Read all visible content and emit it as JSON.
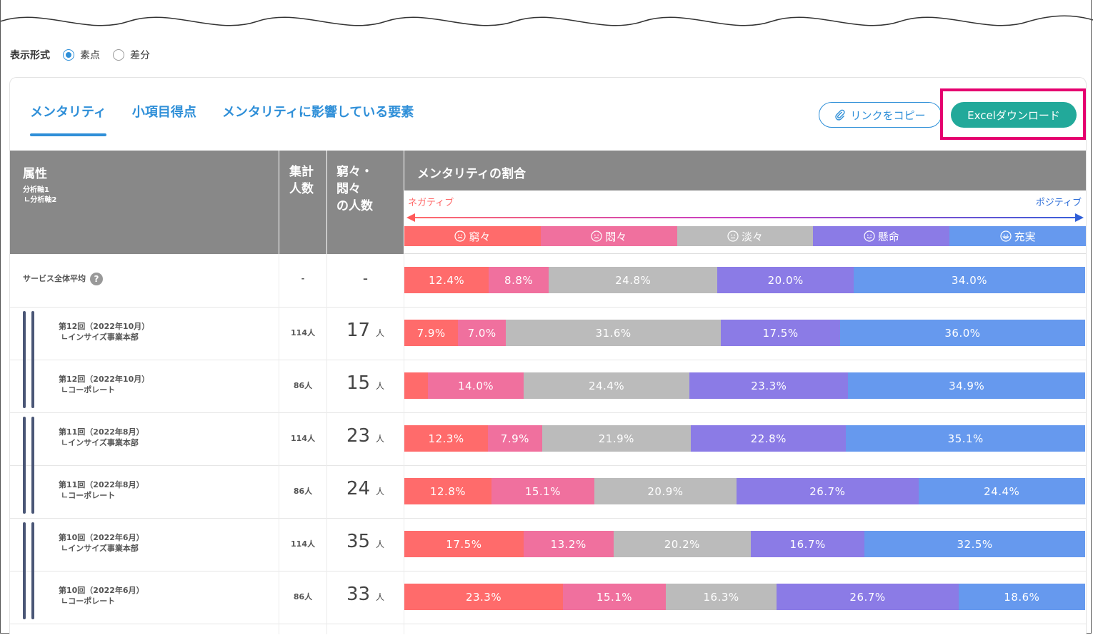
{
  "display_mode": {
    "label": "表示形式",
    "options": [
      {
        "label": "素点",
        "selected": true
      },
      {
        "label": "差分",
        "selected": false
      }
    ]
  },
  "tabs": [
    {
      "label": "メンタリティ",
      "active": true
    },
    {
      "label": "小項目得点",
      "active": false
    },
    {
      "label": "メンタリティに影響している要素",
      "active": false
    }
  ],
  "buttons": {
    "copy_link": "リンクをコピー",
    "excel": "Excelダウンロード"
  },
  "header": {
    "attr": "属性",
    "attr_sub1": "分析軸1",
    "attr_sub2": "∟分析軸2",
    "count": "集計\n人数",
    "neg_people": "窮々・\n悶々\nの人数",
    "ratio": "メンタリティの割合",
    "negative": "ネガティブ",
    "positive": "ポジティブ"
  },
  "categories": [
    {
      "name": "窮々",
      "color": "#ff6b6b"
    },
    {
      "name": "悶々",
      "color": "#f0709e"
    },
    {
      "name": "淡々",
      "color": "#bbbbbb"
    },
    {
      "name": "懸命",
      "color": "#8b7be6"
    },
    {
      "name": "充実",
      "color": "#6699ee"
    }
  ],
  "chart_data": {
    "type": "bar",
    "stacked": true,
    "normalized": true,
    "categories": [
      "サービス全体平均",
      "第12回（2022年10月） インサイズ事業本部",
      "第12回（2022年10月） コーポレート",
      "第11回（2022年8月） インサイズ事業本部",
      "第11回（2022年8月） コーポレート",
      "第10回（2022年6月） インサイズ事業本部",
      "第10回（2022年6月） コーポレート"
    ],
    "series": [
      {
        "name": "窮々",
        "values": [
          12.4,
          7.9,
          3.5,
          12.3,
          12.8,
          17.5,
          23.3
        ]
      },
      {
        "name": "悶々",
        "values": [
          8.8,
          7.0,
          14.0,
          7.9,
          15.1,
          13.2,
          15.1
        ]
      },
      {
        "name": "淡々",
        "values": [
          24.8,
          31.6,
          24.4,
          21.9,
          20.9,
          20.2,
          16.3
        ]
      },
      {
        "name": "懸命",
        "values": [
          20.0,
          17.5,
          23.3,
          22.8,
          26.7,
          16.7,
          26.7
        ]
      },
      {
        "name": "充実",
        "values": [
          34.0,
          36.0,
          34.9,
          35.1,
          24.4,
          32.5,
          18.6
        ]
      }
    ],
    "labels": [
      [
        "12.4%",
        "8.8%",
        "24.8%",
        "20.0%",
        "34.0%"
      ],
      [
        "7.9%",
        "7.0%",
        "31.6%",
        "17.5%",
        "36.0%"
      ],
      [
        "",
        "14.0%",
        "24.4%",
        "23.3%",
        "34.9%"
      ],
      [
        "12.3%",
        "7.9%",
        "21.9%",
        "22.8%",
        "35.1%"
      ],
      [
        "12.8%",
        "15.1%",
        "20.9%",
        "26.7%",
        "24.4%"
      ],
      [
        "17.5%",
        "13.2%",
        "20.2%",
        "16.7%",
        "32.5%"
      ],
      [
        "23.3%",
        "15.1%",
        "16.3%",
        "26.7%",
        "18.6%"
      ]
    ]
  },
  "rows": [
    {
      "line1": "サービス全体平均",
      "line2": "",
      "count": "-",
      "neg": "-",
      "unit": "",
      "avg": true
    },
    {
      "line1": "第12回（2022年10月）",
      "line2": "∟インサイズ事業本部",
      "count": "114人",
      "neg": "17",
      "unit": "人"
    },
    {
      "line1": "第12回（2022年10月）",
      "line2": "∟コーポレート",
      "count": "86人",
      "neg": "15",
      "unit": "人"
    },
    {
      "line1": "第11回（2022年8月）",
      "line2": "∟インサイズ事業本部",
      "count": "114人",
      "neg": "23",
      "unit": "人"
    },
    {
      "line1": "第11回（2022年8月）",
      "line2": "∟コーポレート",
      "count": "86人",
      "neg": "24",
      "unit": "人"
    },
    {
      "line1": "第10回（2022年6月）",
      "line2": "∟インサイズ事業本部",
      "count": "114人",
      "neg": "35",
      "unit": "人"
    },
    {
      "line1": "第10回（2022年6月）",
      "line2": "∟コーポレート",
      "count": "86人",
      "neg": "33",
      "unit": "人"
    }
  ]
}
